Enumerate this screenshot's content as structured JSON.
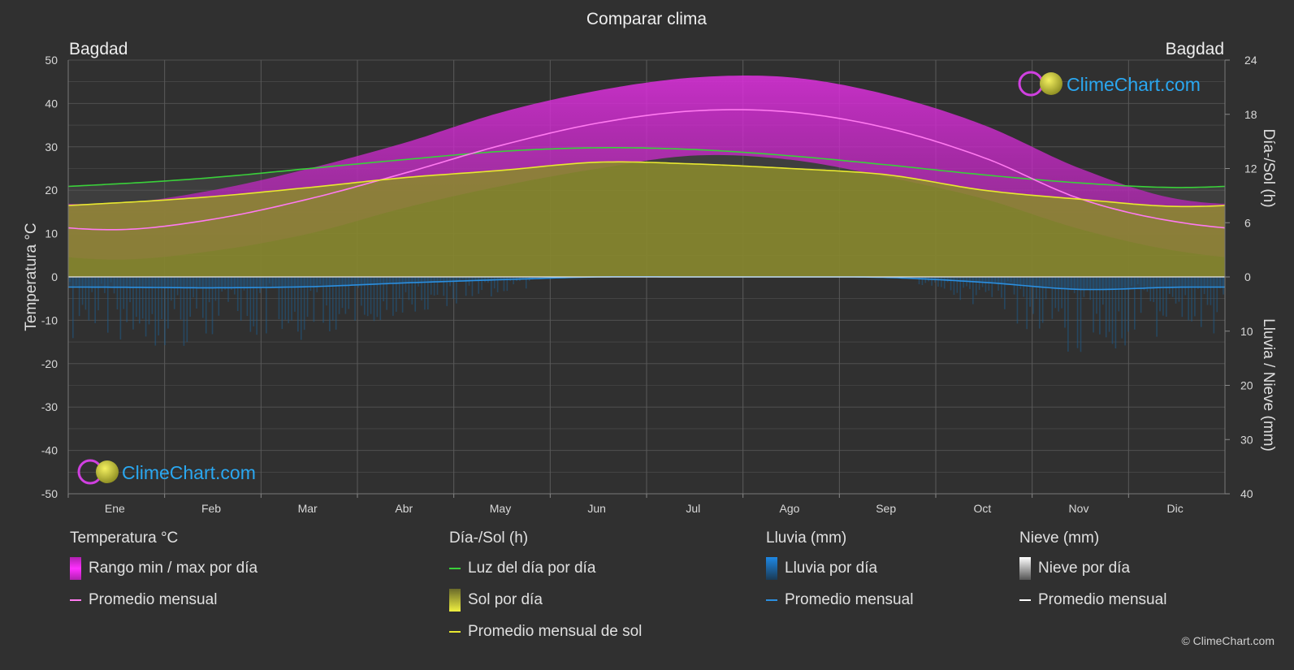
{
  "title": "Comparar clima",
  "location_left": "Bagdad",
  "location_right": "Bagdad",
  "watermark_top": "ClimeChart.com",
  "watermark_bottom": "ClimeChart.com",
  "copyright": "© ClimeChart.com",
  "colors": {
    "background": "#303030",
    "temp_range": "#d020d0",
    "temp_avg": "#ff7af0",
    "daylight": "#3ad03a",
    "sun_fill": "#8a8a2c",
    "sun_avg": "#e8e830",
    "rain": "#1e88e5",
    "rain_avg": "#2b8fe0",
    "snow_avg": "#ffffff",
    "logo_text": "#2aa7f0"
  },
  "chart_data": {
    "type": "area",
    "months": [
      "Ene",
      "Feb",
      "Mar",
      "Abr",
      "May",
      "Jun",
      "Jul",
      "Ago",
      "Sep",
      "Oct",
      "Nov",
      "Dic"
    ],
    "y_left": {
      "label": "Temperatura °C",
      "range": [
        -50,
        50
      ],
      "ticks": [
        "50",
        "40",
        "30",
        "20",
        "10",
        "0",
        "-10",
        "-20",
        "-30",
        "-40",
        "-50"
      ]
    },
    "y_right_top": {
      "label": "Día-/Sol (h)",
      "range": [
        0,
        24
      ],
      "ticks": [
        "24",
        "18",
        "12",
        "6",
        "0"
      ]
    },
    "y_right_bottom": {
      "label": "Lluvia / Nieve (mm)",
      "range": [
        0,
        40
      ],
      "ticks": [
        "10",
        "20",
        "30",
        "40"
      ]
    },
    "series": [
      {
        "name": "Rango min / max por día",
        "kind": "range",
        "unit": "°C",
        "min": [
          4,
          6,
          10,
          16,
          21,
          25,
          28,
          27,
          23,
          18,
          11,
          6
        ],
        "max": [
          17,
          20,
          25,
          31,
          38,
          43,
          46,
          46,
          42,
          35,
          25,
          18
        ]
      },
      {
        "name": "Promedio mensual",
        "kind": "temp_avg",
        "unit": "°C",
        "values": [
          10.9,
          13.3,
          18.0,
          24.0,
          30.4,
          35.5,
          38.3,
          38.0,
          34.3,
          27.5,
          18.0,
          12.7
        ]
      },
      {
        "name": "Luz del día por día",
        "kind": "daylight",
        "unit": "h",
        "values": [
          10.3,
          11.0,
          12.0,
          13.0,
          13.9,
          14.3,
          14.1,
          13.4,
          12.4,
          11.3,
          10.4,
          9.9
        ]
      },
      {
        "name": "Promedio mensual de sol",
        "kind": "sun_avg",
        "unit": "h",
        "values": [
          8.2,
          8.9,
          9.9,
          11.0,
          11.8,
          12.7,
          12.5,
          12.0,
          11.3,
          9.6,
          8.6,
          7.8
        ]
      },
      {
        "name": "Promedio mensual",
        "kind": "rain_avg",
        "unit": "mm",
        "values": [
          1.9,
          2.0,
          1.8,
          1.1,
          0.5,
          0.0,
          0.0,
          0.0,
          0.1,
          1.0,
          2.3,
          1.9
        ]
      }
    ]
  },
  "legend": {
    "groups": [
      {
        "title": "Temperatura °C",
        "items": [
          {
            "label": "Rango min / max por día",
            "swatch": "box-temp"
          },
          {
            "label": "Promedio mensual",
            "swatch": "line-temp"
          }
        ]
      },
      {
        "title": "Día-/Sol (h)",
        "items": [
          {
            "label": "Luz del día por día",
            "swatch": "line-daylight"
          },
          {
            "label": "Sol por día",
            "swatch": "box-sun"
          },
          {
            "label": "Promedio mensual de sol",
            "swatch": "line-sun"
          }
        ]
      },
      {
        "title": "Lluvia (mm)",
        "items": [
          {
            "label": "Lluvia por día",
            "swatch": "box-rain"
          },
          {
            "label": "Promedio mensual",
            "swatch": "line-rain"
          }
        ]
      },
      {
        "title": "Nieve (mm)",
        "items": [
          {
            "label": "Nieve por día",
            "swatch": "box-snow"
          },
          {
            "label": "Promedio mensual",
            "swatch": "line-snow"
          }
        ]
      }
    ]
  }
}
